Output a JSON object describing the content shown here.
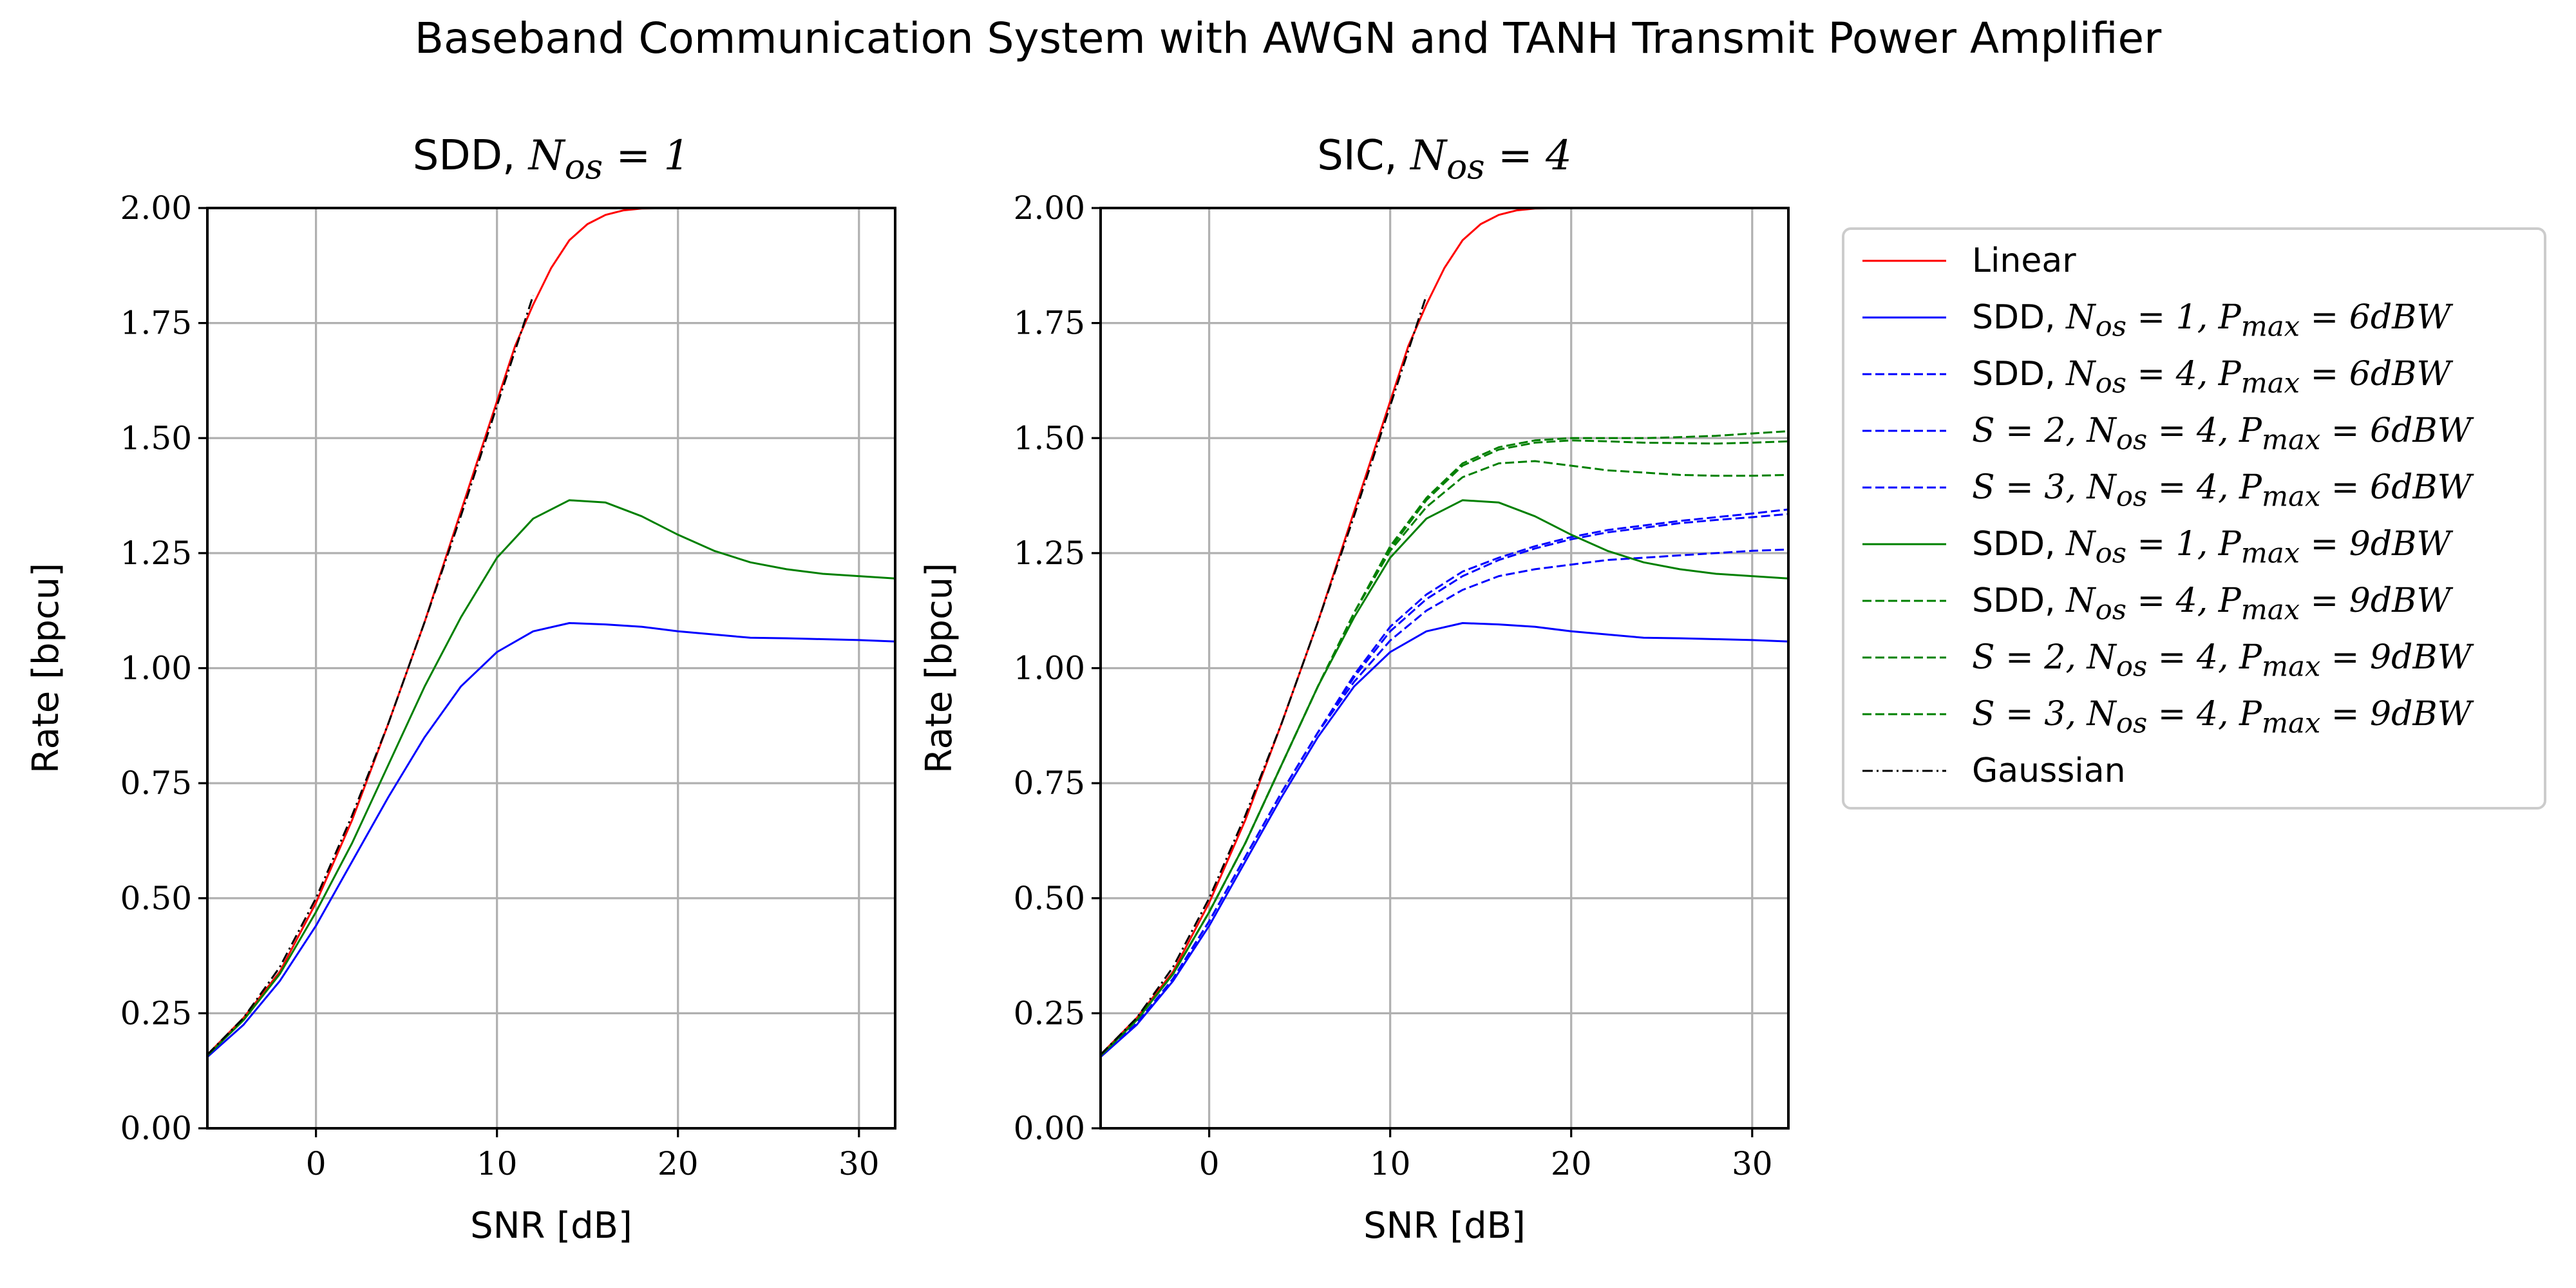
{
  "figure_title": "Baseband Communication System with AWGN and TANH Transmit Power Amplifier",
  "colors": {
    "red": "#ff0000",
    "blue": "#0000ff",
    "green": "#008000",
    "black": "#000000",
    "grid": "#b0b0b0"
  },
  "legend": {
    "placement": "outside-right",
    "entries": [
      {
        "key": "linear",
        "text": "Linear",
        "color": "#ff0000",
        "dash": "solid"
      },
      {
        "key": "sdd1_6",
        "pre": "SDD, ",
        "math": "N<sub>os</sub> = 1, P<sub>max</sub> = 6dBW",
        "color": "#0000ff",
        "dash": "solid"
      },
      {
        "key": "sdd4_6",
        "pre": "SDD, ",
        "math": "N<sub>os</sub> = 4, P<sub>max</sub> = 6dBW",
        "color": "#0000ff",
        "dash": "dashed"
      },
      {
        "key": "s2_6",
        "pre": "",
        "math": "S = 2, N<sub>os</sub> = 4, P<sub>max</sub> = 6dBW",
        "color": "#0000ff",
        "dash": "dashed"
      },
      {
        "key": "s3_6",
        "pre": "",
        "math": "S = 3, N<sub>os</sub> = 4, P<sub>max</sub> = 6dBW",
        "color": "#0000ff",
        "dash": "dashed"
      },
      {
        "key": "sdd1_9",
        "pre": "SDD, ",
        "math": "N<sub>os</sub> = 1, P<sub>max</sub> = 9dBW",
        "color": "#008000",
        "dash": "solid"
      },
      {
        "key": "sdd4_9",
        "pre": "SDD, ",
        "math": "N<sub>os</sub> = 4, P<sub>max</sub> = 9dBW",
        "color": "#008000",
        "dash": "dashed"
      },
      {
        "key": "s2_9",
        "pre": "",
        "math": "S = 2, N<sub>os</sub> = 4, P<sub>max</sub> = 9dBW",
        "color": "#008000",
        "dash": "dashed"
      },
      {
        "key": "s3_9",
        "pre": "",
        "math": "S = 3, N<sub>os</sub> = 4, P<sub>max</sub> = 9dBW",
        "color": "#008000",
        "dash": "dashed"
      },
      {
        "key": "gauss",
        "text": "Gaussian",
        "color": "#000000",
        "dash": "dashdot"
      }
    ]
  },
  "chart_data": [
    {
      "type": "line",
      "title_pre": "SDD, ",
      "title_math": "N<sub>os</sub> = 1",
      "xlabel": "SNR [dB]",
      "ylabel": "Rate [bpcu]",
      "xlim": [
        -6,
        32
      ],
      "ylim": [
        0,
        2
      ],
      "xticks": [
        0,
        10,
        20,
        30
      ],
      "yticks": [
        "0.00",
        "0.25",
        "0.50",
        "0.75",
        "1.00",
        "1.25",
        "1.50",
        "1.75",
        "2.00"
      ],
      "grid": true,
      "series": [
        {
          "key": "linear",
          "color": "#ff0000",
          "dash": "solid",
          "x": [
            -6,
            -4,
            -2,
            0,
            2,
            4,
            6,
            8,
            10,
            11,
            12,
            13,
            14,
            15,
            16,
            17,
            18,
            20,
            22,
            24,
            26,
            28,
            30,
            32
          ],
          "y": [
            0.16,
            0.24,
            0.34,
            0.49,
            0.67,
            0.88,
            1.1,
            1.34,
            1.58,
            1.7,
            1.79,
            1.87,
            1.93,
            1.965,
            1.985,
            1.995,
            1.999,
            2.0,
            2.0,
            2.0,
            2.0,
            2.0,
            2.0,
            2.0
          ]
        },
        {
          "key": "sdd1_6",
          "color": "#0000ff",
          "dash": "solid",
          "x": [
            -6,
            -4,
            -2,
            0,
            2,
            4,
            6,
            8,
            10,
            12,
            14,
            16,
            18,
            20,
            22,
            24,
            26,
            28,
            30,
            32
          ],
          "y": [
            0.155,
            0.225,
            0.32,
            0.44,
            0.58,
            0.72,
            0.85,
            0.96,
            1.035,
            1.08,
            1.098,
            1.095,
            1.09,
            1.08,
            1.073,
            1.066,
            1.065,
            1.063,
            1.061,
            1.058
          ]
        },
        {
          "key": "sdd1_9",
          "color": "#008000",
          "dash": "solid",
          "x": [
            -6,
            -4,
            -2,
            0,
            2,
            4,
            6,
            8,
            10,
            12,
            14,
            16,
            18,
            20,
            22,
            24,
            26,
            28,
            30,
            32
          ],
          "y": [
            0.158,
            0.235,
            0.335,
            0.47,
            0.62,
            0.79,
            0.96,
            1.11,
            1.24,
            1.325,
            1.365,
            1.36,
            1.33,
            1.29,
            1.255,
            1.23,
            1.215,
            1.205,
            1.2,
            1.195
          ]
        },
        {
          "key": "gauss",
          "color": "#000000",
          "dash": "dashdot",
          "x": [
            -6,
            -4,
            -2,
            0,
            2,
            4,
            6,
            8,
            10,
            12
          ],
          "y": [
            0.16,
            0.24,
            0.35,
            0.5,
            0.68,
            0.88,
            1.1,
            1.33,
            1.57,
            1.81
          ]
        }
      ]
    },
    {
      "type": "line",
      "title_pre": "SIC, ",
      "title_math": "N<sub>os</sub> = 4",
      "xlabel": "SNR [dB]",
      "ylabel": "Rate [bpcu]",
      "xlim": [
        -6,
        32
      ],
      "ylim": [
        0,
        2
      ],
      "xticks": [
        0,
        10,
        20,
        30
      ],
      "yticks": [
        "0.00",
        "0.25",
        "0.50",
        "0.75",
        "1.00",
        "1.25",
        "1.50",
        "1.75",
        "2.00"
      ],
      "grid": true,
      "series": [
        {
          "key": "linear",
          "color": "#ff0000",
          "dash": "solid",
          "x": [
            -6,
            -4,
            -2,
            0,
            2,
            4,
            6,
            8,
            10,
            11,
            12,
            13,
            14,
            15,
            16,
            17,
            18,
            20,
            22,
            24,
            26,
            28,
            30,
            32
          ],
          "y": [
            0.16,
            0.24,
            0.34,
            0.49,
            0.67,
            0.88,
            1.1,
            1.34,
            1.58,
            1.7,
            1.79,
            1.87,
            1.93,
            1.965,
            1.985,
            1.995,
            1.999,
            2.0,
            2.0,
            2.0,
            2.0,
            2.0,
            2.0,
            2.0
          ]
        },
        {
          "key": "sdd1_6",
          "color": "#0000ff",
          "dash": "solid",
          "x": [
            -6,
            -4,
            -2,
            0,
            2,
            4,
            6,
            8,
            10,
            12,
            14,
            16,
            18,
            20,
            22,
            24,
            26,
            28,
            30,
            32
          ],
          "y": [
            0.155,
            0.225,
            0.32,
            0.44,
            0.58,
            0.72,
            0.85,
            0.96,
            1.035,
            1.08,
            1.098,
            1.095,
            1.09,
            1.08,
            1.073,
            1.066,
            1.065,
            1.063,
            1.061,
            1.058
          ]
        },
        {
          "key": "sdd4_6",
          "color": "#0000ff",
          "dash": "dashed",
          "x": [
            -6,
            -4,
            -2,
            0,
            2,
            4,
            6,
            8,
            10,
            12,
            14,
            16,
            18,
            20,
            22,
            24,
            26,
            28,
            30,
            32
          ],
          "y": [
            0.156,
            0.228,
            0.325,
            0.45,
            0.59,
            0.73,
            0.86,
            0.97,
            1.06,
            1.125,
            1.17,
            1.2,
            1.215,
            1.225,
            1.235,
            1.24,
            1.245,
            1.25,
            1.255,
            1.258
          ]
        },
        {
          "key": "s2_6",
          "color": "#0000ff",
          "dash": "dashed",
          "x": [
            -6,
            -4,
            -2,
            0,
            2,
            4,
            6,
            8,
            10,
            12,
            14,
            16,
            18,
            20,
            22,
            24,
            26,
            28,
            30,
            32
          ],
          "y": [
            0.156,
            0.228,
            0.325,
            0.45,
            0.59,
            0.73,
            0.86,
            0.98,
            1.08,
            1.15,
            1.2,
            1.235,
            1.26,
            1.28,
            1.295,
            1.305,
            1.315,
            1.322,
            1.328,
            1.335
          ]
        },
        {
          "key": "s3_6",
          "color": "#0000ff",
          "dash": "dashed",
          "x": [
            -6,
            -4,
            -2,
            0,
            2,
            4,
            6,
            8,
            10,
            12,
            14,
            16,
            18,
            20,
            22,
            24,
            26,
            28,
            30,
            32
          ],
          "y": [
            0.156,
            0.228,
            0.325,
            0.45,
            0.59,
            0.73,
            0.86,
            0.985,
            1.09,
            1.16,
            1.21,
            1.24,
            1.265,
            1.285,
            1.3,
            1.31,
            1.32,
            1.328,
            1.336,
            1.345
          ]
        },
        {
          "key": "sdd1_9",
          "color": "#008000",
          "dash": "solid",
          "x": [
            -6,
            -4,
            -2,
            0,
            2,
            4,
            6,
            8,
            10,
            12,
            14,
            16,
            18,
            20,
            22,
            24,
            26,
            28,
            30,
            32
          ],
          "y": [
            0.158,
            0.235,
            0.335,
            0.47,
            0.62,
            0.79,
            0.96,
            1.11,
            1.24,
            1.325,
            1.365,
            1.36,
            1.33,
            1.29,
            1.255,
            1.23,
            1.215,
            1.205,
            1.2,
            1.195
          ]
        },
        {
          "key": "sdd4_9",
          "color": "#008000",
          "dash": "dashed",
          "x": [
            -6,
            -4,
            -2,
            0,
            2,
            4,
            6,
            8,
            10,
            12,
            14,
            16,
            18,
            20,
            22,
            24,
            26,
            28,
            30,
            32
          ],
          "y": [
            0.158,
            0.235,
            0.335,
            0.47,
            0.62,
            0.79,
            0.96,
            1.12,
            1.255,
            1.35,
            1.415,
            1.445,
            1.45,
            1.44,
            1.43,
            1.425,
            1.42,
            1.418,
            1.418,
            1.42
          ]
        },
        {
          "key": "s2_9",
          "color": "#008000",
          "dash": "dashed",
          "x": [
            -6,
            -4,
            -2,
            0,
            2,
            4,
            6,
            8,
            10,
            12,
            14,
            16,
            18,
            20,
            22,
            24,
            26,
            28,
            30,
            32
          ],
          "y": [
            0.158,
            0.235,
            0.335,
            0.47,
            0.62,
            0.79,
            0.96,
            1.12,
            1.26,
            1.365,
            1.44,
            1.475,
            1.49,
            1.495,
            1.493,
            1.49,
            1.489,
            1.488,
            1.49,
            1.493
          ]
        },
        {
          "key": "s3_9",
          "color": "#008000",
          "dash": "dashed",
          "x": [
            -6,
            -4,
            -2,
            0,
            2,
            4,
            6,
            8,
            10,
            12,
            14,
            16,
            18,
            20,
            22,
            24,
            26,
            28,
            30,
            32
          ],
          "y": [
            0.158,
            0.235,
            0.335,
            0.47,
            0.62,
            0.79,
            0.96,
            1.12,
            1.265,
            1.37,
            1.445,
            1.48,
            1.495,
            1.5,
            1.5,
            1.5,
            1.502,
            1.505,
            1.51,
            1.515
          ]
        },
        {
          "key": "gauss",
          "color": "#000000",
          "dash": "dashdot",
          "x": [
            -6,
            -4,
            -2,
            0,
            2,
            4,
            6,
            8,
            10,
            12
          ],
          "y": [
            0.16,
            0.24,
            0.35,
            0.5,
            0.68,
            0.88,
            1.1,
            1.33,
            1.57,
            1.81
          ]
        }
      ]
    }
  ]
}
